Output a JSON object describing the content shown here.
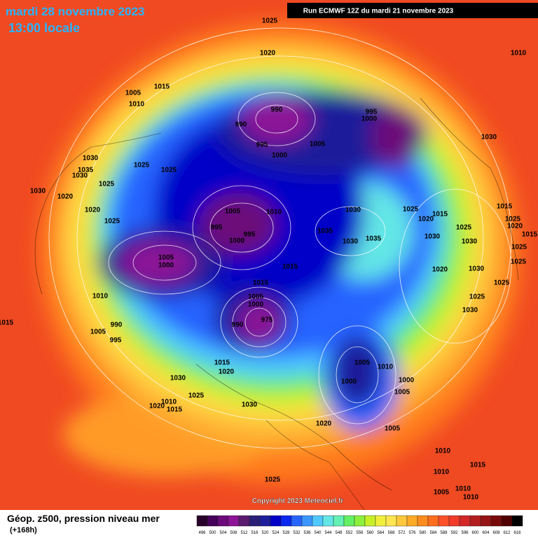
{
  "header": {
    "date": "mardi 28 novembre 2023",
    "time": "13:00 locale",
    "run": "Run ECMWF 12Z du mardi 21 novembre 2023"
  },
  "footer": {
    "title": "Géop. z500, pression niveau mer",
    "lead": "(+168h)",
    "copyright": "Copyright 2023 Meteociel.fr"
  },
  "legend": {
    "values": [
      496,
      500,
      504,
      508,
      512,
      516,
      520,
      524,
      528,
      532,
      536,
      540,
      544,
      548,
      552,
      556,
      560,
      564,
      568,
      572,
      576,
      580,
      584,
      588,
      592,
      596,
      600,
      604,
      608,
      612,
      616
    ],
    "colors": [
      "#28002a",
      "#46005a",
      "#6c0a7a",
      "#8c1496",
      "#5a1a6e",
      "#2a2078",
      "#1e1e9a",
      "#0000c8",
      "#0a28f0",
      "#2864ff",
      "#3c96ff",
      "#50c8ff",
      "#64e6e6",
      "#64f0b4",
      "#64f064",
      "#8cf03c",
      "#c8f028",
      "#f0f03c",
      "#ffe650",
      "#ffc83c",
      "#ffaa28",
      "#ff8c1e",
      "#ff6e1e",
      "#ff5028",
      "#f03c28",
      "#d22828",
      "#b41e1e",
      "#961414",
      "#780a0a",
      "#500000",
      "#000000"
    ]
  },
  "isobar_labels": [
    "1025",
    "1020",
    "1010",
    "1005",
    "1015",
    "1010",
    "990",
    "995",
    "1000",
    "990",
    "995",
    "1005",
    "1000",
    "1030",
    "1030",
    "1025",
    "1025",
    "1035",
    "1030",
    "1025",
    "1030",
    "1020",
    "1020",
    "1005",
    "1010",
    "1030",
    "1025",
    "1015",
    "1015",
    "1020",
    "1025",
    "995",
    "995",
    "1000",
    "1035",
    "1030",
    "1035",
    "1025",
    "1030",
    "1030",
    "1025",
    "1020",
    "1015",
    "1025",
    "1025",
    "1005",
    "1000",
    "1015",
    "1020",
    "1030",
    "1015",
    "1025",
    "1010",
    "1005",
    "1000",
    "1025",
    "1030",
    "1015",
    "990",
    "990",
    "975",
    "1005",
    "995",
    "1005",
    "1010",
    "1015",
    "1020",
    "1000",
    "1030",
    "1000",
    "1025",
    "1005",
    "1010",
    "1020",
    "1015",
    "1030",
    "1020",
    "1005",
    "1010",
    "1015",
    "1010",
    "1010",
    "1005",
    "1010",
    "1025"
  ]
}
